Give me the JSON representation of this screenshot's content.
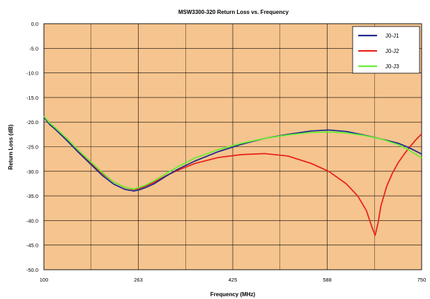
{
  "chart_data": {
    "type": "line",
    "title": "MSW3300-320 Return Loss vs. Frequency",
    "xlabel": "Frequency (MHz)",
    "ylabel": "Return Loss (dB)",
    "xlim": [
      100,
      750
    ],
    "ylim": [
      -50,
      0
    ],
    "x_ticks": [
      "100",
      "263",
      "425",
      "588",
      "750"
    ],
    "y_ticks": [
      "0.0",
      "-5.0",
      "-10.0",
      "-15.0",
      "-20.0",
      "-25.0",
      "-30.0",
      "-35.0",
      "-40.0",
      "-45.0",
      "-50.0"
    ],
    "grid": true,
    "legend_position": "top-right",
    "colors": {
      "plot_background": "#f6c48e",
      "gridline": "#000000"
    },
    "series": [
      {
        "name": "J0-J1",
        "color": "#1f2a8c",
        "x": [
          100,
          110,
          120,
          140,
          160,
          180,
          200,
          220,
          240,
          255,
          263,
          275,
          290,
          310,
          330,
          360,
          400,
          440,
          480,
          520,
          560,
          590,
          620,
          650,
          680,
          710,
          730,
          750
        ],
        "y": [
          -19.0,
          -20.5,
          -21.5,
          -23.8,
          -26.2,
          -28.5,
          -30.8,
          -32.6,
          -33.7,
          -34.0,
          -33.8,
          -33.3,
          -32.5,
          -31.0,
          -29.6,
          -27.9,
          -26.0,
          -24.5,
          -23.3,
          -22.5,
          -21.8,
          -21.6,
          -21.9,
          -22.6,
          -23.4,
          -24.3,
          -25.3,
          -26.5
        ]
      },
      {
        "name": "J0-J2",
        "color": "#e8231b",
        "x": [
          100,
          110,
          120,
          140,
          160,
          180,
          200,
          220,
          240,
          255,
          263,
          275,
          290,
          310,
          330,
          360,
          400,
          440,
          480,
          520,
          560,
          590,
          620,
          640,
          655,
          665,
          670,
          675,
          680,
          690,
          700,
          710,
          720,
          730,
          740,
          750
        ],
        "y": [
          -19.0,
          -20.3,
          -21.3,
          -23.5,
          -25.9,
          -28.2,
          -30.4,
          -32.2,
          -33.3,
          -33.7,
          -33.5,
          -33.0,
          -32.2,
          -30.9,
          -29.8,
          -28.4,
          -27.2,
          -26.6,
          -26.4,
          -26.9,
          -28.4,
          -30.0,
          -32.5,
          -35.0,
          -38.0,
          -41.5,
          -43.0,
          -40.5,
          -37.0,
          -33.0,
          -30.3,
          -28.2,
          -26.5,
          -25.0,
          -23.6,
          -22.4
        ]
      },
      {
        "name": "J0-J3",
        "color": "#66ee33",
        "x": [
          100,
          110,
          120,
          140,
          160,
          180,
          200,
          220,
          240,
          255,
          263,
          275,
          290,
          310,
          330,
          360,
          400,
          440,
          480,
          520,
          560,
          590,
          620,
          650,
          680,
          710,
          730,
          750
        ],
        "y": [
          -18.8,
          -20.2,
          -21.2,
          -23.4,
          -25.8,
          -28.0,
          -30.2,
          -32.2,
          -33.3,
          -33.6,
          -33.3,
          -32.8,
          -31.9,
          -30.5,
          -29.1,
          -27.3,
          -25.6,
          -24.3,
          -23.3,
          -22.6,
          -22.1,
          -22.0,
          -22.2,
          -22.7,
          -23.4,
          -24.6,
          -25.8,
          -27.3
        ]
      }
    ]
  }
}
